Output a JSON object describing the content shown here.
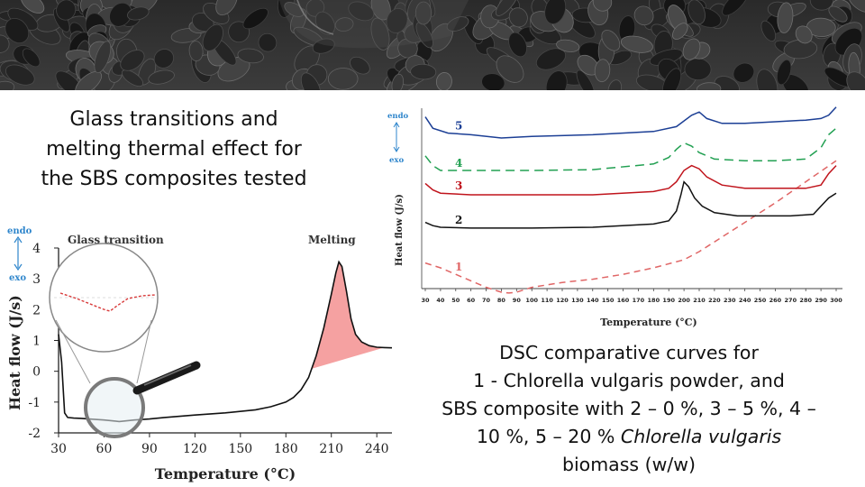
{
  "title_left": [
    "Glass transitions and",
    "melting thermal effect for",
    "the SBS composites tested"
  ],
  "caption_right": {
    "line1": "DSC comparative curves for",
    "line2": "1 - Chlorella vulgaris powder, and",
    "line3": "SBS composite with 2 – 0 %, 3 – 5 %, 4 –",
    "line4_plain": "10 %, 5 – 20 % ",
    "line4_italic": "Chlorella vulgaris",
    "line5": "biomass (w/w)"
  },
  "colors": {
    "series1": "#e06666",
    "series2": "#111111",
    "series3": "#c0141c",
    "series4": "#22a052",
    "series5": "#1c3f95",
    "melt_fill": "#f5a1a1",
    "endo_exo": "#2f86cc"
  },
  "chart_data": [
    {
      "type": "line",
      "title": "",
      "xlabel": "Temperature (°C)",
      "ylabel": "Heat flow (J/s)",
      "xlim": [
        30,
        250
      ],
      "ylim": [
        -2,
        4
      ],
      "xticks": [
        "30",
        "60",
        "90",
        "120",
        "150",
        "180",
        "210",
        "240"
      ],
      "yticks": [
        "-2",
        "-1",
        "0",
        "1",
        "2",
        "3",
        "4"
      ],
      "annotations": {
        "glass": "Glass transition",
        "melting": "Melting",
        "endo": "endo",
        "exo": "exo"
      },
      "series": [
        {
          "x": [
            30,
            32,
            34,
            36,
            40,
            45,
            50,
            60,
            70,
            80,
            90,
            100,
            120,
            140,
            160,
            170,
            180,
            185,
            190,
            195,
            200,
            205,
            210,
            213,
            215,
            217,
            220,
            223,
            226,
            230,
            235,
            240,
            245,
            250
          ],
          "y": [
            1.2,
            0.3,
            -1.35,
            -1.5,
            -1.52,
            -1.53,
            -1.55,
            -1.58,
            -1.63,
            -1.58,
            -1.55,
            -1.5,
            -1.42,
            -1.35,
            -1.25,
            -1.15,
            -1.0,
            -0.85,
            -0.6,
            -0.2,
            0.5,
            1.4,
            2.5,
            3.2,
            3.55,
            3.4,
            2.6,
            1.7,
            1.2,
            0.95,
            0.83,
            0.78,
            0.77,
            0.76
          ]
        }
      ]
    },
    {
      "type": "line",
      "title": "",
      "xlabel": "Temperature (°C)",
      "ylabel": "Heat flow (J/s)",
      "xlim": [
        30,
        300
      ],
      "xticks": [
        "30",
        "40",
        "50",
        "60",
        "70",
        "80",
        "90",
        "100",
        "110",
        "120",
        "130",
        "140",
        "150",
        "160",
        "170",
        "180",
        "190",
        "200",
        "210",
        "220",
        "230",
        "240",
        "250",
        "260",
        "270",
        "280",
        "290",
        "300"
      ],
      "yticks": [],
      "annotations": {
        "endo": "endo",
        "exo": "exo"
      },
      "series": [
        {
          "name": "1",
          "x": [
            30,
            40,
            50,
            60,
            70,
            80,
            85,
            90,
            100,
            120,
            140,
            160,
            180,
            200,
            210,
            220,
            240,
            260,
            280,
            300
          ],
          "y": [
            1.3,
            1.0,
            0.6,
            0.2,
            -0.2,
            -0.5,
            -0.55,
            -0.5,
            -0.2,
            0.1,
            0.3,
            0.6,
            1.0,
            1.5,
            2.0,
            2.6,
            3.8,
            5.0,
            6.3,
            7.6
          ]
        },
        {
          "name": "2",
          "x": [
            30,
            35,
            40,
            60,
            80,
            100,
            140,
            180,
            190,
            195,
            198,
            200,
            203,
            207,
            212,
            220,
            235,
            250,
            270,
            285,
            290,
            295,
            300
          ],
          "y": [
            3.8,
            3.6,
            3.5,
            3.45,
            3.45,
            3.45,
            3.5,
            3.7,
            3.9,
            4.5,
            5.5,
            6.3,
            6.0,
            5.3,
            4.8,
            4.4,
            4.2,
            4.2,
            4.2,
            4.3,
            4.8,
            5.3,
            5.6
          ]
        },
        {
          "name": "3",
          "x": [
            30,
            35,
            40,
            60,
            100,
            140,
            180,
            190,
            195,
            200,
            205,
            210,
            215,
            225,
            240,
            260,
            280,
            290,
            295,
            300
          ],
          "y": [
            6.2,
            5.8,
            5.6,
            5.5,
            5.5,
            5.5,
            5.7,
            5.9,
            6.3,
            7.0,
            7.3,
            7.1,
            6.6,
            6.1,
            5.9,
            5.9,
            5.9,
            6.1,
            6.8,
            7.3
          ]
        },
        {
          "name": "4",
          "x": [
            30,
            35,
            40,
            60,
            100,
            140,
            180,
            190,
            195,
            200,
            205,
            210,
            220,
            240,
            260,
            280,
            290,
            295,
            300
          ],
          "y": [
            7.9,
            7.3,
            7.0,
            7.0,
            7.0,
            7.05,
            7.4,
            7.8,
            8.3,
            8.7,
            8.5,
            8.1,
            7.7,
            7.6,
            7.6,
            7.7,
            8.4,
            9.2,
            9.6
          ]
        },
        {
          "name": "5",
          "x": [
            30,
            35,
            45,
            60,
            80,
            100,
            140,
            180,
            195,
            205,
            210,
            215,
            225,
            240,
            260,
            280,
            290,
            295,
            300
          ],
          "y": [
            10.3,
            9.6,
            9.3,
            9.2,
            9.0,
            9.1,
            9.2,
            9.4,
            9.7,
            10.4,
            10.6,
            10.2,
            9.9,
            9.9,
            10.0,
            10.1,
            10.2,
            10.4,
            10.9
          ]
        }
      ]
    }
  ]
}
